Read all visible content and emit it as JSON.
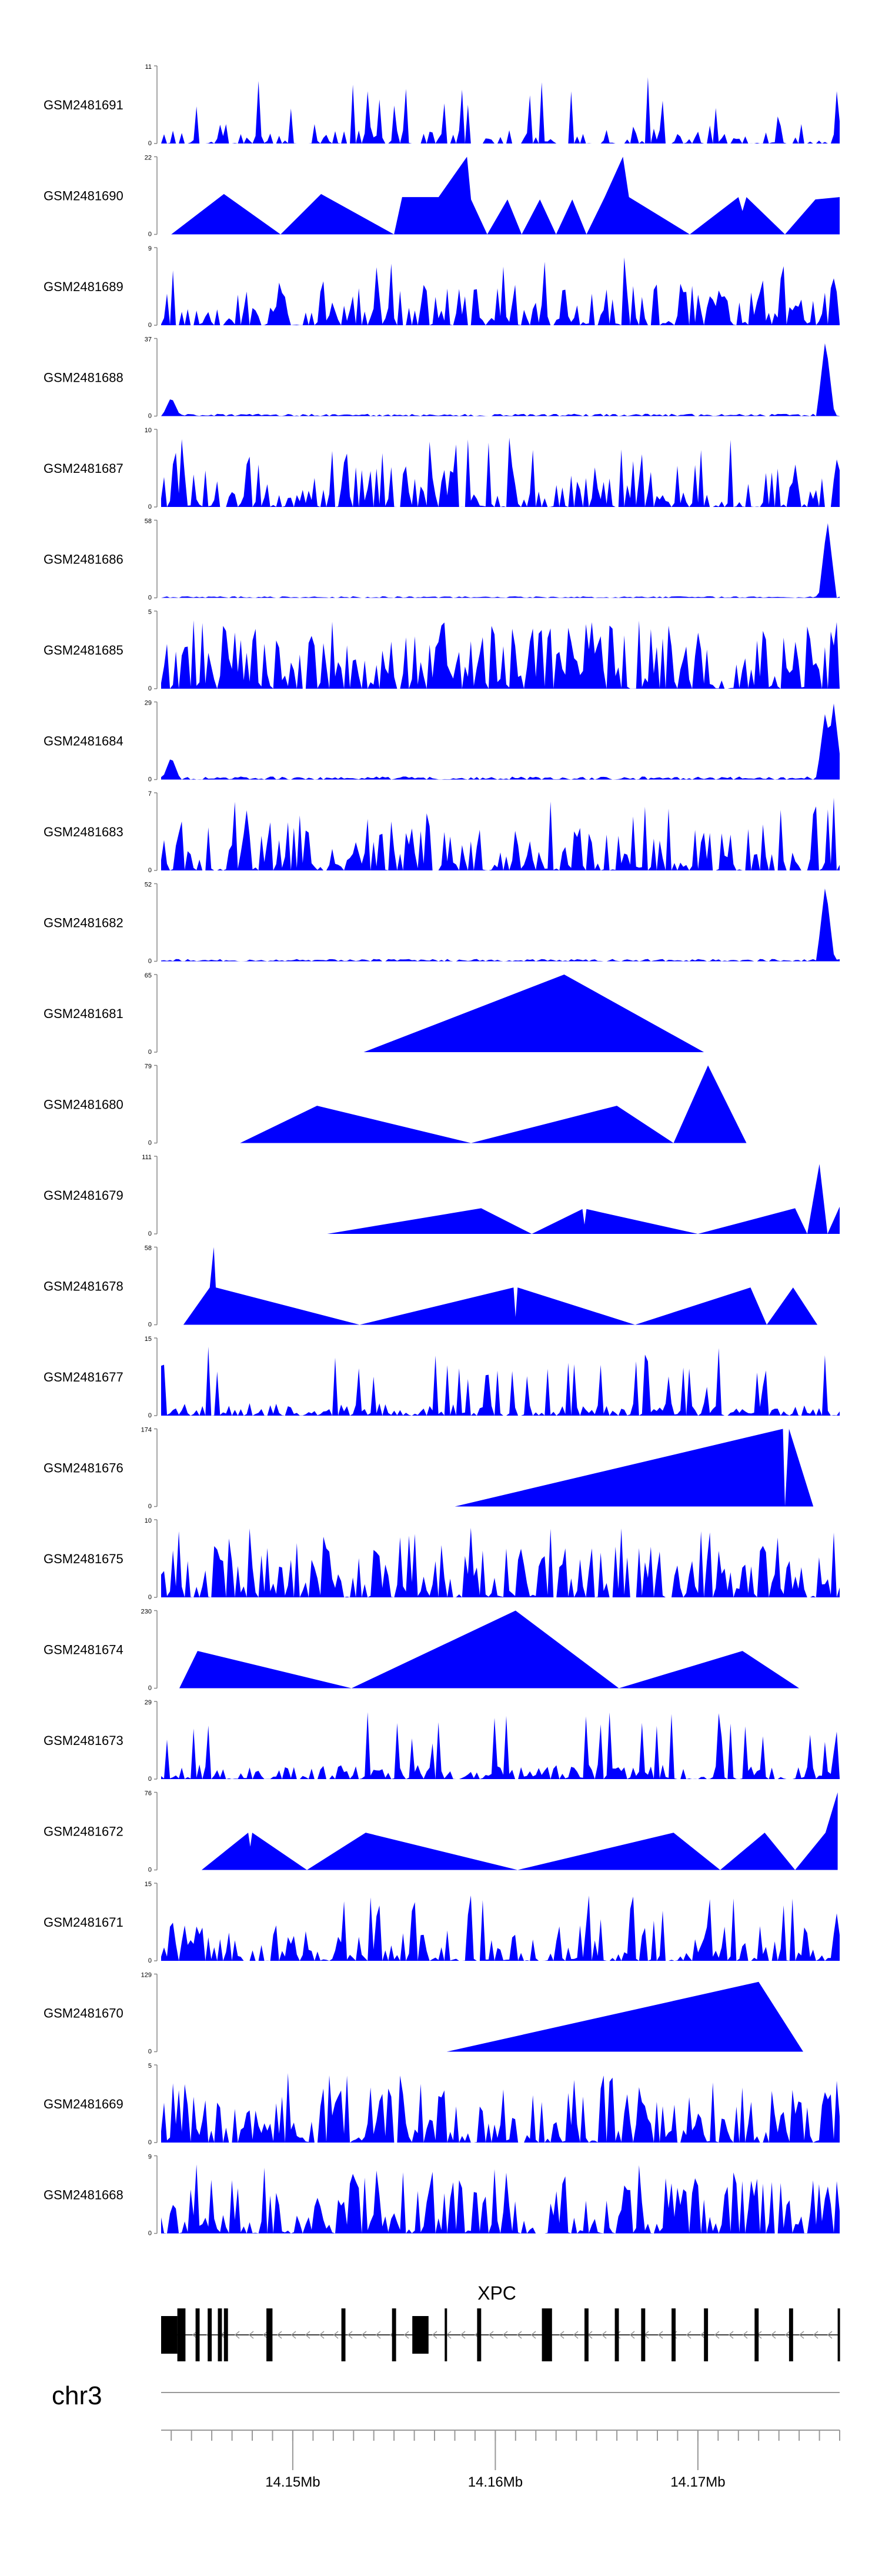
{
  "chart_data": {
    "type": "area",
    "title": "",
    "color": "#0000ff",
    "x_range_bp": [
      14143500,
      14177000
    ],
    "tracks": [
      {
        "name": "GSM2481691",
        "ymax": "11",
        "ymin": "0",
        "pattern": "noisy",
        "seed": 11,
        "density": 0.55,
        "level": 0.16,
        "peaks": [
          [
            14174000,
            0.6
          ],
          [
            14176900,
            1.0
          ]
        ]
      },
      {
        "name": "GSM2481690",
        "ymax": "22",
        "ymin": "0",
        "pattern": "points",
        "pts": [
          [
            14144000,
            0
          ],
          [
            14146600,
            0.52
          ],
          [
            14149400,
            0
          ],
          [
            14151400,
            0.52
          ],
          [
            14155000,
            0
          ],
          [
            14155400,
            0.48
          ],
          [
            14157200,
            0.48
          ],
          [
            14158600,
            1.0
          ],
          [
            14158800,
            0.45
          ],
          [
            14159600,
            0
          ],
          [
            14160600,
            0.45
          ],
          [
            14161300,
            0
          ],
          [
            14162200,
            0.45
          ],
          [
            14163000,
            0
          ],
          [
            14163800,
            0.45
          ],
          [
            14164500,
            0
          ],
          [
            14165400,
            0.48
          ],
          [
            14166300,
            1.0
          ],
          [
            14166600,
            0.48
          ],
          [
            14169600,
            0
          ],
          [
            14172000,
            0.48
          ],
          [
            14174300,
            0
          ],
          [
            14175800,
            0.45
          ],
          [
            14177000,
            0.48
          ],
          [
            14172000,
            0.48
          ],
          [
            14172200,
            0.3
          ],
          [
            14172400,
            0.48
          ]
        ]
      },
      {
        "name": "GSM2481689",
        "ymax": "9",
        "ymin": "0",
        "pattern": "noisy",
        "seed": 23,
        "density": 0.9,
        "level": 0.3,
        "peaks": [
          [
            14169200,
            1.0
          ],
          [
            14170800,
            0.6
          ],
          [
            14176800,
            0.7
          ]
        ]
      },
      {
        "name": "GSM2481688",
        "ymax": "37",
        "ymin": "0",
        "pattern": "lowpeak",
        "seed": 31,
        "density": 0.9,
        "level": 0.03,
        "peaks": [
          [
            14144000,
            0.25
          ],
          [
            14176300,
            1.0
          ]
        ]
      },
      {
        "name": "GSM2481687",
        "ymax": "10",
        "ymin": "0",
        "pattern": "noisy",
        "seed": 41,
        "density": 0.85,
        "level": 0.35,
        "peaks": [
          [
            14176800,
            1.0
          ]
        ]
      },
      {
        "name": "GSM2481686",
        "ymax": "58",
        "ymin": "0",
        "pattern": "lowpeak",
        "seed": 53,
        "density": 0.9,
        "level": 0.02,
        "peaks": [
          [
            14176400,
            1.0
          ]
        ]
      },
      {
        "name": "GSM2481685",
        "ymax": "5",
        "ymin": "0",
        "pattern": "noisy",
        "seed": 61,
        "density": 0.9,
        "level": 0.55,
        "peaks": [
          [
            14144600,
            1.0
          ],
          [
            14176600,
            1.0
          ]
        ]
      },
      {
        "name": "GSM2481684",
        "ymax": "29",
        "ymin": "0",
        "pattern": "lowpeak",
        "seed": 71,
        "density": 0.9,
        "level": 0.04,
        "peaks": [
          [
            14144000,
            0.3
          ],
          [
            14176300,
            0.9
          ],
          [
            14176700,
            1.0
          ]
        ]
      },
      {
        "name": "GSM2481683",
        "ymax": "7",
        "ymin": "0",
        "pattern": "noisy",
        "seed": 83,
        "density": 0.85,
        "level": 0.35,
        "peaks": [
          [
            14176700,
            1.0
          ]
        ]
      },
      {
        "name": "GSM2481682",
        "ymax": "52",
        "ymin": "0",
        "pattern": "lowpeak",
        "seed": 97,
        "density": 0.9,
        "level": 0.03,
        "peaks": [
          [
            14176300,
            1.0
          ]
        ]
      },
      {
        "name": "GSM2481681",
        "ymax": "65",
        "ymin": "0",
        "pattern": "points",
        "pts": [
          [
            14153500,
            0
          ],
          [
            14163400,
            1.0
          ],
          [
            14170300,
            0
          ]
        ]
      },
      {
        "name": "GSM2481680",
        "ymax": "79",
        "ymin": "0",
        "pattern": "points",
        "pts": [
          [
            14147400,
            0
          ],
          [
            14151200,
            0.48
          ],
          [
            14158800,
            0
          ],
          [
            14166000,
            0.48
          ],
          [
            14168800,
            0
          ],
          [
            14170500,
            1.0
          ],
          [
            14172400,
            0
          ],
          [
            14168800,
            0
          ]
        ]
      },
      {
        "name": "GSM2481679",
        "ymax": "111",
        "ymin": "0",
        "pattern": "points",
        "pts": [
          [
            14151700,
            0
          ],
          [
            14159300,
            0.33
          ],
          [
            14161800,
            0
          ],
          [
            14164300,
            0.32
          ],
          [
            14164400,
            0.12
          ],
          [
            14164500,
            0.32
          ],
          [
            14170000,
            0
          ],
          [
            14174800,
            0.33
          ],
          [
            14175400,
            0
          ],
          [
            14176000,
            0.9
          ],
          [
            14176400,
            0
          ],
          [
            14177000,
            0.35
          ]
        ]
      },
      {
        "name": "GSM2481678",
        "ymax": "58",
        "ymin": "0",
        "pattern": "points",
        "pts": [
          [
            14144600,
            0
          ],
          [
            14145900,
            0.48
          ],
          [
            14146100,
            1.0
          ],
          [
            14146200,
            0.48
          ],
          [
            14153300,
            0
          ],
          [
            14160900,
            0.48
          ],
          [
            14161000,
            0.1
          ],
          [
            14161100,
            0.48
          ],
          [
            14166900,
            0
          ],
          [
            14172600,
            0.48
          ],
          [
            14173400,
            0
          ],
          [
            14174700,
            0.48
          ],
          [
            14175900,
            0
          ]
        ]
      },
      {
        "name": "GSM2481677",
        "ymax": "15",
        "ymin": "0",
        "pattern": "noisy",
        "seed": 109,
        "density": 0.9,
        "level": 0.1,
        "peaks": [
          [
            14171000,
            0.75
          ],
          [
            14173300,
            1.0
          ],
          [
            14170400,
            0.55
          ]
        ]
      },
      {
        "name": "GSM2481676",
        "ymax": "174",
        "ymin": "0",
        "pattern": "points",
        "pts": [
          [
            14158000,
            0
          ],
          [
            14174200,
            1.0
          ],
          [
            14174300,
            0
          ],
          [
            14174500,
            1.0
          ],
          [
            14175700,
            0
          ]
        ]
      },
      {
        "name": "GSM2481675",
        "ymax": "10",
        "ymin": "0",
        "pattern": "noisy",
        "seed": 127,
        "density": 0.85,
        "level": 0.4,
        "peaks": [
          [
            14173300,
            1.0
          ],
          [
            14171000,
            0.75
          ],
          [
            14176000,
            0.6
          ]
        ]
      },
      {
        "name": "GSM2481674",
        "ymax": "230",
        "ymin": "0",
        "pattern": "points",
        "pts": [
          [
            14144400,
            0
          ],
          [
            14145300,
            0.48
          ],
          [
            14152900,
            0
          ],
          [
            14161000,
            1.0
          ],
          [
            14166100,
            0
          ],
          [
            14172200,
            0.48
          ],
          [
            14175000,
            0
          ]
        ]
      },
      {
        "name": "GSM2481673",
        "ymax": "29",
        "ymin": "0",
        "pattern": "noisy",
        "seed": 139,
        "density": 0.9,
        "level": 0.12,
        "peaks": [
          [
            14176800,
            1.0
          ],
          [
            14176300,
            0.6
          ]
        ]
      },
      {
        "name": "GSM2481672",
        "ymax": "76",
        "ymin": "0",
        "pattern": "points",
        "pts": [
          [
            14145500,
            0
          ],
          [
            14147800,
            0.48
          ],
          [
            14147900,
            0.3
          ],
          [
            14148000,
            0.48
          ],
          [
            14150700,
            0
          ],
          [
            14153600,
            0.48
          ],
          [
            14161100,
            0
          ],
          [
            14168800,
            0.48
          ],
          [
            14171100,
            0
          ],
          [
            14173300,
            0.48
          ],
          [
            14174800,
            0
          ],
          [
            14176300,
            0.48
          ],
          [
            14176900,
            1.0
          ]
        ]
      },
      {
        "name": "GSM2481671",
        "ymax": "15",
        "ymin": "0",
        "pattern": "noisy",
        "seed": 151,
        "density": 0.8,
        "level": 0.3,
        "peaks": [
          [
            14144000,
            0.8
          ],
          [
            14154100,
            0.75
          ],
          [
            14176800,
            1.0
          ]
        ]
      },
      {
        "name": "GSM2481670",
        "ymax": "129",
        "ymin": "0",
        "pattern": "points",
        "pts": [
          [
            14157600,
            0
          ],
          [
            14173000,
            0.9
          ],
          [
            14175200,
            0
          ]
        ]
      },
      {
        "name": "GSM2481669",
        "ymax": "5",
        "ymin": "0",
        "pattern": "noisy",
        "seed": 163,
        "density": 0.9,
        "level": 0.45,
        "peaks": [
          [
            14144700,
            1.0
          ],
          [
            14176900,
            1.0
          ]
        ]
      },
      {
        "name": "GSM2481668",
        "ymax": "9",
        "ymin": "0",
        "pattern": "noisy",
        "seed": 173,
        "density": 0.85,
        "level": 0.45,
        "peaks": [
          [
            14153000,
            1.0
          ],
          [
            14176900,
            1.0
          ]
        ]
      }
    ],
    "gene": {
      "name": "XPC",
      "strand": "-",
      "exons": [
        [
          14143500,
          14144300
        ],
        [
          14144300,
          14144700
        ],
        [
          14145200,
          14145400
        ],
        [
          14145800,
          14146000
        ],
        [
          14146300,
          14146500
        ],
        [
          14146600,
          14146800
        ],
        [
          14148700,
          14149000
        ],
        [
          14152400,
          14152600
        ],
        [
          14154900,
          14155100
        ],
        [
          14155900,
          14156700
        ],
        [
          14157500,
          14157600
        ],
        [
          14159100,
          14159300
        ],
        [
          14162300,
          14162500
        ],
        [
          14162500,
          14162800
        ],
        [
          14164400,
          14164600
        ],
        [
          14165900,
          14166100
        ],
        [
          14167200,
          14167400
        ],
        [
          14168700,
          14168900
        ],
        [
          14170300,
          14170500
        ],
        [
          14172800,
          14173000
        ],
        [
          14174500,
          14174700
        ],
        [
          14176900,
          14177000
        ]
      ]
    },
    "chromosome": "chr3",
    "axis": {
      "ticks_bp": [
        14144000,
        14145000,
        14146000,
        14147000,
        14148000,
        14149000,
        14150000,
        14151000,
        14152000,
        14153000,
        14154000,
        14155000,
        14156000,
        14157000,
        14158000,
        14159000,
        14160000,
        14161000,
        14162000,
        14163000,
        14164000,
        14165000,
        14166000,
        14167000,
        14168000,
        14169000,
        14170000,
        14171000,
        14172000,
        14173000,
        14174000,
        14175000,
        14176000,
        14177000
      ],
      "labeled_ticks": [
        {
          "bp": 14150000,
          "label": "14.15Mb"
        },
        {
          "bp": 14160000,
          "label": "14.16Mb"
        },
        {
          "bp": 14170000,
          "label": "14.17Mb"
        }
      ]
    }
  }
}
